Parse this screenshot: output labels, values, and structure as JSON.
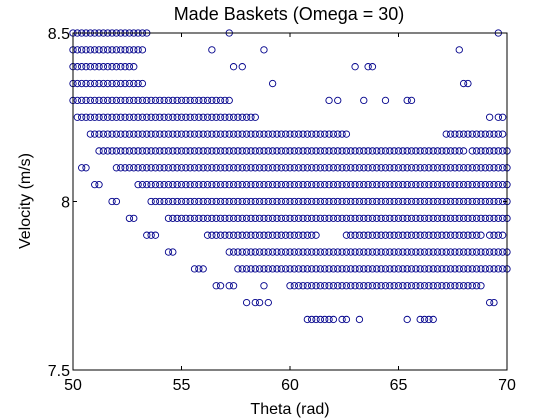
{
  "chart_data": {
    "type": "scatter",
    "title": "Made Baskets (Omega = 30)",
    "xlabel": "Theta (rad)",
    "ylabel": "Velocity (m/s)",
    "xlim": [
      50,
      70
    ],
    "ylim": [
      7.5,
      8.5
    ],
    "xticks": [
      50,
      55,
      60,
      65,
      70
    ],
    "yticks": [
      7.5,
      8,
      8.5
    ],
    "xtick_labels": [
      "50",
      "55",
      "60",
      "65",
      "70"
    ],
    "ytick_labels": [
      "7.5",
      "8",
      "8.5"
    ],
    "grid": false,
    "legend": "none",
    "marker": "open-circle",
    "marker_color": "#00008b",
    "x_step": 0.2,
    "series": [
      {
        "rows": [
          {
            "y": 8.5,
            "ranges": [
              [
                50.0,
                53.4
              ]
            ],
            "points": [
              57.2,
              69.6
            ]
          },
          {
            "y": 8.45,
            "ranges": [
              [
                50.0,
                53.2
              ]
            ],
            "points": [
              56.4,
              58.8,
              67.8
            ]
          },
          {
            "y": 8.4,
            "ranges": [
              [
                50.0,
                52.8
              ]
            ],
            "points": [
              57.4,
              57.8,
              63.0,
              63.6,
              63.8
            ]
          },
          {
            "y": 8.35,
            "ranges": [
              [
                50.0,
                53.2
              ]
            ],
            "points": [
              59.2,
              68.0,
              68.2
            ]
          },
          {
            "y": 8.3,
            "ranges": [
              [
                50.0,
                54.0
              ],
              [
                54.2,
                57.2
              ]
            ],
            "points": [
              61.8,
              62.2,
              63.4,
              64.4,
              65.4,
              65.6
            ]
          },
          {
            "y": 8.25,
            "ranges": [
              [
                50.2,
                58.4
              ]
            ],
            "points": [
              69.2,
              69.6,
              69.8
            ]
          },
          {
            "y": 8.2,
            "ranges": [
              [
                50.8,
                62.6
              ]
            ],
            "points": [
              67.2,
              67.4,
              67.6,
              67.8,
              68.0,
              68.2,
              68.4,
              68.6,
              68.8,
              69.0,
              69.2,
              69.4,
              69.6,
              69.8
            ]
          },
          {
            "y": 8.15,
            "ranges": [
              [
                51.2,
                68.0
              ],
              [
                68.4,
                70.0
              ]
            ],
            "points": []
          },
          {
            "y": 8.1,
            "ranges": [
              [
                52.0,
                70.0
              ]
            ],
            "points": [
              50.4,
              50.6
            ]
          },
          {
            "y": 8.05,
            "ranges": [
              [
                53.0,
                70.0
              ]
            ],
            "points": [
              51.0,
              51.2
            ]
          },
          {
            "y": 8.0,
            "ranges": [
              [
                53.6,
                70.0
              ]
            ],
            "points": [
              51.8,
              52.0
            ]
          },
          {
            "y": 7.95,
            "ranges": [
              [
                54.4,
                70.0
              ]
            ],
            "points": [
              52.6,
              52.8
            ]
          },
          {
            "y": 7.9,
            "ranges": [
              [
                56.2,
                61.2
              ],
              [
                62.6,
                68.8
              ]
            ],
            "points": [
              53.4,
              53.6,
              53.8,
              69.2,
              69.4,
              69.6,
              69.8
            ]
          },
          {
            "y": 7.85,
            "ranges": [
              [
                57.2,
                63.0
              ],
              [
                63.2,
                70.0
              ]
            ],
            "points": [
              54.4,
              54.6
            ]
          },
          {
            "y": 7.8,
            "ranges": [
              [
                57.6,
                61.8
              ],
              [
                62.0,
                67.0
              ],
              [
                67.2,
                70.0
              ]
            ],
            "points": [
              55.6,
              55.8,
              56.0
            ]
          },
          {
            "y": 7.75,
            "ranges": [
              [
                60.0,
                68.0
              ],
              [
                68.2,
                68.8
              ]
            ],
            "points": [
              56.6,
              56.8,
              57.2,
              57.4,
              58.8
            ]
          },
          {
            "y": 7.7,
            "ranges": [],
            "points": [
              58.0,
              58.4,
              58.6,
              59.0,
              69.2,
              69.4
            ]
          },
          {
            "y": 7.65,
            "ranges": [
              [
                60.8,
                62.0
              ]
            ],
            "points": [
              62.4,
              62.6,
              63.2,
              65.4,
              66.0,
              66.2,
              66.4,
              66.6
            ]
          }
        ]
      }
    ]
  }
}
